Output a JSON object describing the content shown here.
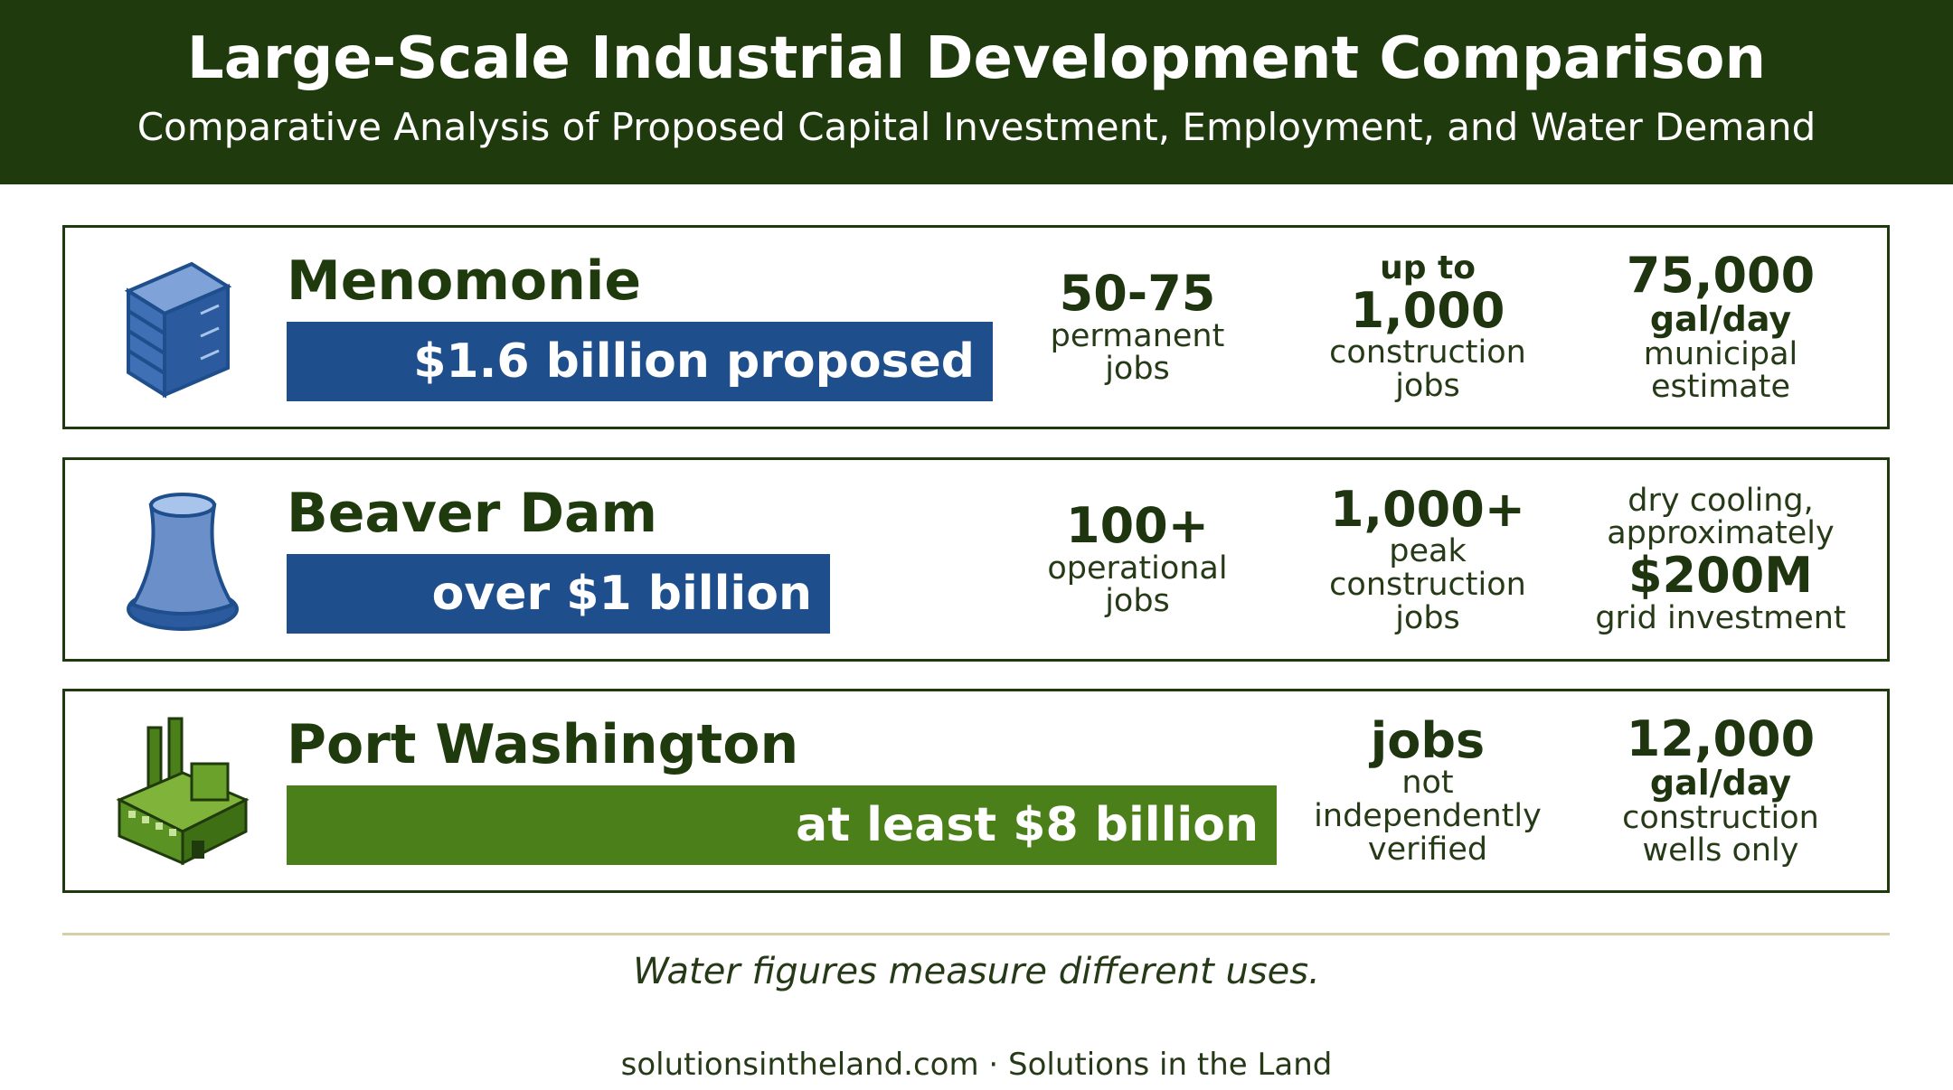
{
  "header": {
    "title": "Large-Scale Industrial Development Comparison",
    "subtitle": "Comparative Analysis of Proposed Capital Investment, Employment, and Water Demand"
  },
  "rows": [
    {
      "name": "Menomonie",
      "investment": "$1.6 billion proposed",
      "stats": [
        {
          "figure": "50-75",
          "detail": [
            "permanent",
            "jobs"
          ]
        },
        {
          "lead": "up to",
          "figure": "1,000",
          "detail": [
            "construction",
            "jobs"
          ]
        },
        {
          "figure": "75,000",
          "unit": "gal/day",
          "detail": [
            "municipal",
            "estimate"
          ]
        }
      ]
    },
    {
      "name": "Beaver Dam",
      "investment": "over $1 billion",
      "stats": [
        {
          "figure": "100+",
          "detail": [
            "operational",
            "jobs"
          ]
        },
        {
          "figure": "1,000+",
          "detail": [
            "peak",
            "construction",
            "jobs"
          ]
        },
        {
          "intro": [
            "dry cooling,",
            "approximately"
          ],
          "figure": "$200M",
          "detail": [
            "grid investment"
          ]
        }
      ]
    },
    {
      "name": "Port Washington",
      "investment": "at least $8 billion",
      "stats": [
        {
          "figure": "jobs",
          "detail": [
            "not",
            "independently",
            "verified"
          ]
        },
        {
          "figure": "12,000",
          "unit": "gal/day",
          "detail": [
            "construction",
            "wells only"
          ]
        }
      ]
    }
  ],
  "note": "Water figures measure different uses.",
  "footer": "solutionsintheland.com · Solutions in the Land"
}
